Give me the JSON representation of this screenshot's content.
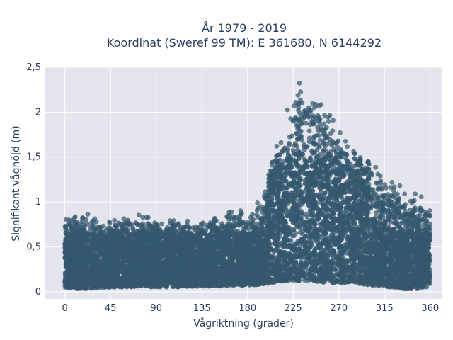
{
  "chart_data": {
    "type": "scatter",
    "title_line1": "År 1979 - 2019",
    "title_line2": "Koordinat (Sweref 99 TM): E 361680, N 6144292",
    "xlabel": "Vågriktning (grader)",
    "ylabel": "Signifikant våghöjd (m)",
    "xlim": [
      -20,
      372
    ],
    "ylim": [
      -0.08,
      2.5
    ],
    "xticks": [
      0,
      45,
      90,
      135,
      180,
      225,
      270,
      315,
      360
    ],
    "xtick_labels": [
      "0",
      "45",
      "90",
      "135",
      "180",
      "225",
      "270",
      "315",
      "360"
    ],
    "yticks": [
      0,
      0.5,
      1,
      1.5,
      2,
      2.5
    ],
    "ytick_labels": [
      "0",
      "0,5",
      "1",
      "1,5",
      "2",
      "2,5"
    ],
    "grid": true,
    "marker_color": "#34586e",
    "background": "#e5e5ee",
    "envelope": {
      "direction": [
        0,
        15,
        30,
        45,
        60,
        75,
        90,
        105,
        120,
        135,
        150,
        165,
        180,
        195,
        205,
        215,
        225,
        235,
        245,
        255,
        265,
        275,
        285,
        295,
        305,
        315,
        325,
        335,
        345,
        355,
        360
      ],
      "lower_height": [
        0.05,
        0.03,
        0.04,
        0.05,
        0.05,
        0.06,
        0.05,
        0.05,
        0.06,
        0.06,
        0.06,
        0.07,
        0.07,
        0.08,
        0.1,
        0.12,
        0.12,
        0.12,
        0.12,
        0.1,
        0.1,
        0.1,
        0.1,
        0.08,
        0.07,
        0.06,
        0.04,
        0.03,
        0.03,
        0.04,
        0.08
      ],
      "upper_height": [
        0.88,
        0.92,
        0.85,
        0.82,
        0.86,
        0.9,
        0.8,
        0.82,
        0.8,
        0.82,
        0.88,
        0.95,
        0.9,
        1.1,
        1.6,
        1.95,
        2.3,
        2.4,
        2.35,
        2.2,
        2.05,
        1.85,
        1.65,
        1.5,
        1.4,
        1.35,
        1.3,
        1.2,
        1.1,
        1.05,
        0.95
      ]
    }
  }
}
